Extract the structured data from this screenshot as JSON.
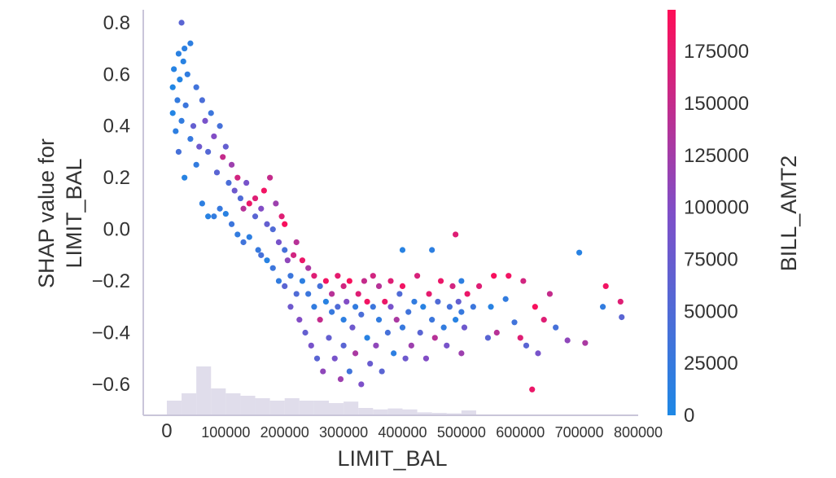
{
  "chart_data": {
    "type": "scatter",
    "title": "",
    "xlabel": "LIMIT_BAL",
    "ylabel_lines": [
      "SHAP value for",
      "LIMIT_BAL"
    ],
    "xlim": [
      -40000,
      800000
    ],
    "ylim": [
      -0.72,
      0.85
    ],
    "x_ticks": [
      0,
      100000,
      200000,
      300000,
      400000,
      500000,
      600000,
      700000,
      800000
    ],
    "x_tick_labels": [
      "0",
      "100000",
      "200000",
      "300000",
      "400000",
      "500000",
      "600000",
      "700000",
      "800000"
    ],
    "y_ticks": [
      0.8,
      0.6,
      0.4,
      0.2,
      0.0,
      -0.2,
      -0.4,
      -0.6
    ],
    "y_tick_labels": [
      "0.8",
      "0.6",
      "0.4",
      "0.2",
      "0.0",
      "−0.2",
      "−0.4",
      "−0.6"
    ],
    "colorbar": {
      "label": "BILL_AMT2",
      "range": [
        0,
        195000
      ],
      "ticks": [
        0,
        25000,
        50000,
        75000,
        100000,
        125000,
        150000,
        175000
      ],
      "tick_labels": [
        "0",
        "25000",
        "50000",
        "75000",
        "100000",
        "125000",
        "150000",
        "175000"
      ],
      "colors": [
        "#1e88e5",
        "#7f4fc8",
        "#ff0d57"
      ]
    },
    "histogram": {
      "bin_width": 25000,
      "bins_start": [
        0,
        25000,
        50000,
        75000,
        100000,
        125000,
        150000,
        175000,
        200000,
        225000,
        250000,
        275000,
        300000,
        325000,
        350000,
        375000,
        400000,
        425000,
        450000,
        475000,
        500000
      ],
      "relative_heights": [
        0.3,
        0.45,
        1.0,
        0.55,
        0.45,
        0.4,
        0.35,
        0.3,
        0.35,
        0.3,
        0.3,
        0.25,
        0.28,
        0.15,
        0.12,
        0.14,
        0.12,
        0.06,
        0.05,
        0.04,
        0.1
      ],
      "color": "#d8d4e6"
    },
    "points": [
      [
        10000,
        0.45,
        5000
      ],
      [
        10000,
        0.55,
        3000
      ],
      [
        12000,
        0.62,
        8000
      ],
      [
        15000,
        0.38,
        15000
      ],
      [
        18000,
        0.5,
        22000
      ],
      [
        20000,
        0.68,
        12000
      ],
      [
        20000,
        0.3,
        40000
      ],
      [
        22000,
        0.58,
        6000
      ],
      [
        25000,
        0.8,
        60000
      ],
      [
        25000,
        0.42,
        20000
      ],
      [
        28000,
        0.65,
        10000
      ],
      [
        30000,
        0.7,
        14000
      ],
      [
        30000,
        0.2,
        9000
      ],
      [
        32000,
        0.48,
        30000
      ],
      [
        35000,
        0.6,
        18000
      ],
      [
        40000,
        0.35,
        25000
      ],
      [
        40000,
        0.72,
        16000
      ],
      [
        45000,
        0.4,
        70000
      ],
      [
        50000,
        0.55,
        35000
      ],
      [
        50000,
        0.25,
        20000
      ],
      [
        55000,
        0.32,
        80000
      ],
      [
        60000,
        0.5,
        45000
      ],
      [
        60000,
        0.1,
        15000
      ],
      [
        65000,
        0.42,
        90000
      ],
      [
        70000,
        0.3,
        55000
      ],
      [
        70000,
        0.05,
        10000
      ],
      [
        75000,
        0.45,
        30000
      ],
      [
        80000,
        0.36,
        100000
      ],
      [
        80000,
        0.05,
        20000
      ],
      [
        85000,
        0.22,
        60000
      ],
      [
        90000,
        0.4,
        40000
      ],
      [
        90000,
        0.08,
        25000
      ],
      [
        95000,
        0.28,
        150000
      ],
      [
        100000,
        0.32,
        70000
      ],
      [
        100000,
        0.06,
        12000
      ],
      [
        105000,
        0.18,
        45000
      ],
      [
        110000,
        0.25,
        120000
      ],
      [
        110000,
        0.02,
        30000
      ],
      [
        115000,
        0.15,
        80000
      ],
      [
        120000,
        0.2,
        160000
      ],
      [
        120000,
        -0.02,
        20000
      ],
      [
        125000,
        0.12,
        50000
      ],
      [
        130000,
        0.08,
        140000
      ],
      [
        130000,
        -0.05,
        35000
      ],
      [
        135000,
        0.18,
        90000
      ],
      [
        140000,
        0.1,
        180000
      ],
      [
        140000,
        -0.03,
        15000
      ],
      [
        150000,
        0.05,
        60000
      ],
      [
        150000,
        0.12,
        170000
      ],
      [
        155000,
        -0.08,
        25000
      ],
      [
        160000,
        0.08,
        100000
      ],
      [
        160000,
        -0.1,
        40000
      ],
      [
        165000,
        0.15,
        185000
      ],
      [
        170000,
        0.02,
        70000
      ],
      [
        170000,
        -0.12,
        10000
      ],
      [
        175000,
        0.2,
        150000
      ],
      [
        180000,
        0.0,
        50000
      ],
      [
        180000,
        -0.15,
        30000
      ],
      [
        185000,
        0.1,
        120000
      ],
      [
        190000,
        -0.05,
        90000
      ],
      [
        190000,
        -0.2,
        20000
      ],
      [
        195000,
        0.05,
        170000
      ],
      [
        200000,
        -0.08,
        40000
      ],
      [
        200000,
        -0.22,
        60000
      ],
      [
        200000,
        0.02,
        190000
      ],
      [
        205000,
        -0.12,
        110000
      ],
      [
        210000,
        -0.18,
        30000
      ],
      [
        210000,
        -0.3,
        80000
      ],
      [
        215000,
        -0.1,
        160000
      ],
      [
        220000,
        -0.25,
        50000
      ],
      [
        220000,
        -0.05,
        140000
      ],
      [
        225000,
        -0.35,
        100000
      ],
      [
        230000,
        -0.2,
        15000
      ],
      [
        230000,
        -0.12,
        180000
      ],
      [
        235000,
        -0.4,
        70000
      ],
      [
        240000,
        -0.25,
        30000
      ],
      [
        240000,
        -0.15,
        130000
      ],
      [
        245000,
        -0.45,
        90000
      ],
      [
        250000,
        -0.3,
        20000
      ],
      [
        250000,
        -0.18,
        170000
      ],
      [
        255000,
        -0.5,
        60000
      ],
      [
        260000,
        -0.22,
        40000
      ],
      [
        260000,
        -0.35,
        150000
      ],
      [
        265000,
        -0.55,
        110000
      ],
      [
        270000,
        -0.28,
        10000
      ],
      [
        270000,
        -0.2,
        185000
      ],
      [
        275000,
        -0.42,
        70000
      ],
      [
        280000,
        -0.32,
        25000
      ],
      [
        280000,
        -0.25,
        140000
      ],
      [
        285000,
        -0.5,
        90000
      ],
      [
        290000,
        -0.3,
        50000
      ],
      [
        290000,
        -0.18,
        175000
      ],
      [
        295000,
        -0.58,
        120000
      ],
      [
        300000,
        -0.35,
        15000
      ],
      [
        300000,
        -0.22,
        160000
      ],
      [
        300000,
        -0.45,
        60000
      ],
      [
        305000,
        -0.28,
        100000
      ],
      [
        310000,
        -0.55,
        35000
      ],
      [
        310000,
        -0.2,
        190000
      ],
      [
        315000,
        -0.38,
        80000
      ],
      [
        320000,
        -0.3,
        20000
      ],
      [
        320000,
        -0.48,
        130000
      ],
      [
        325000,
        -0.25,
        170000
      ],
      [
        330000,
        -0.6,
        95000
      ],
      [
        330000,
        -0.33,
        45000
      ],
      [
        335000,
        -0.2,
        150000
      ],
      [
        340000,
        -0.42,
        10000
      ],
      [
        340000,
        -0.28,
        185000
      ],
      [
        345000,
        -0.52,
        75000
      ],
      [
        350000,
        -0.3,
        30000
      ],
      [
        350000,
        -0.18,
        160000
      ],
      [
        355000,
        -0.45,
        110000
      ],
      [
        360000,
        -0.35,
        20000
      ],
      [
        360000,
        -0.22,
        140000
      ],
      [
        365000,
        -0.55,
        60000
      ],
      [
        370000,
        -0.28,
        180000
      ],
      [
        375000,
        -0.4,
        40000
      ],
      [
        380000,
        -0.3,
        90000
      ],
      [
        380000,
        -0.2,
        170000
      ],
      [
        385000,
        -0.48,
        15000
      ],
      [
        390000,
        -0.35,
        130000
      ],
      [
        395000,
        -0.25,
        50000
      ],
      [
        400000,
        -0.38,
        25000
      ],
      [
        400000,
        -0.08,
        10000
      ],
      [
        400000,
        -0.22,
        185000
      ],
      [
        405000,
        -0.5,
        80000
      ],
      [
        410000,
        -0.32,
        35000
      ],
      [
        415000,
        -0.45,
        120000
      ],
      [
        420000,
        -0.28,
        20000
      ],
      [
        425000,
        -0.18,
        165000
      ],
      [
        430000,
        -0.4,
        60000
      ],
      [
        435000,
        -0.3,
        10000
      ],
      [
        440000,
        -0.5,
        100000
      ],
      [
        445000,
        -0.25,
        175000
      ],
      [
        450000,
        -0.35,
        30000
      ],
      [
        450000,
        -0.08,
        15000
      ],
      [
        455000,
        -0.42,
        140000
      ],
      [
        460000,
        -0.28,
        50000
      ],
      [
        465000,
        -0.2,
        180000
      ],
      [
        470000,
        -0.38,
        20000
      ],
      [
        475000,
        -0.45,
        90000
      ],
      [
        480000,
        -0.3,
        40000
      ],
      [
        485000,
        -0.22,
        160000
      ],
      [
        490000,
        -0.35,
        10000
      ],
      [
        490000,
        -0.02,
        170000
      ],
      [
        495000,
        -0.28,
        70000
      ],
      [
        500000,
        -0.32,
        25000
      ],
      [
        500000,
        -0.48,
        120000
      ],
      [
        500000,
        -0.2,
        15000
      ],
      [
        505000,
        -0.38,
        80000
      ],
      [
        510000,
        -0.25,
        180000
      ],
      [
        520000,
        -0.3,
        30000
      ],
      [
        530000,
        -0.22,
        170000
      ],
      [
        545000,
        -0.42,
        60000
      ],
      [
        550000,
        -0.3,
        10000
      ],
      [
        555000,
        -0.18,
        190000
      ],
      [
        560000,
        -0.4,
        140000
      ],
      [
        575000,
        -0.27,
        20000
      ],
      [
        580000,
        -0.18,
        185000
      ],
      [
        590000,
        -0.36,
        35000
      ],
      [
        600000,
        -0.42,
        170000
      ],
      [
        605000,
        -0.2,
        160000
      ],
      [
        610000,
        -0.45,
        60000
      ],
      [
        620000,
        -0.62,
        180000
      ],
      [
        625000,
        -0.3,
        190000
      ],
      [
        630000,
        -0.48,
        90000
      ],
      [
        640000,
        -0.35,
        170000
      ],
      [
        650000,
        -0.25,
        150000
      ],
      [
        660000,
        -0.38,
        40000
      ],
      [
        680000,
        -0.43,
        110000
      ],
      [
        700000,
        -0.09,
        10000
      ],
      [
        710000,
        -0.44,
        130000
      ],
      [
        740000,
        -0.3,
        20000
      ],
      [
        745000,
        -0.22,
        185000
      ],
      [
        770000,
        -0.28,
        170000
      ],
      [
        772000,
        -0.34,
        60000
      ]
    ]
  }
}
